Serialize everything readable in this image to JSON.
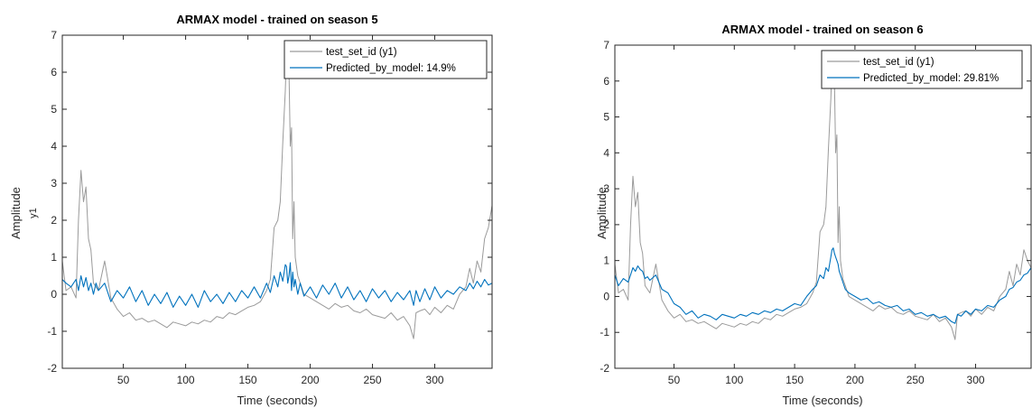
{
  "chart_data": [
    {
      "type": "line",
      "title": "ARMAX model - trained on season 5",
      "xlabel": "Time (seconds)",
      "ylabel": "Amplitude",
      "ylabel2": "y1",
      "xlim": [
        1,
        346
      ],
      "ylim": [
        -2,
        7
      ],
      "xticks": [
        50,
        100,
        150,
        200,
        250,
        300
      ],
      "yticks": [
        -2,
        -1,
        0,
        1,
        2,
        3,
        4,
        5,
        6,
        7
      ],
      "grid": false,
      "legend": "top-right",
      "series": [
        {
          "name": "test_set_id (y1)",
          "color": "#9a9a9a",
          "x": [
            1,
            4,
            8,
            12,
            14,
            16,
            18,
            20,
            22,
            24,
            26,
            28,
            30,
            35,
            40,
            45,
            50,
            55,
            60,
            65,
            70,
            75,
            80,
            85,
            90,
            95,
            100,
            105,
            110,
            115,
            120,
            125,
            130,
            135,
            140,
            145,
            150,
            155,
            160,
            165,
            168,
            171,
            174,
            176,
            178,
            180,
            181,
            182,
            183,
            184,
            185,
            186,
            187,
            188,
            190,
            192,
            195,
            200,
            205,
            210,
            215,
            220,
            225,
            230,
            235,
            240,
            245,
            250,
            255,
            260,
            265,
            270,
            275,
            280,
            283,
            285,
            288,
            292,
            296,
            300,
            305,
            310,
            315,
            320,
            325,
            328,
            331,
            334,
            337,
            340,
            343,
            346
          ],
          "y": [
            0.9,
            0.1,
            0.2,
            -0.1,
            2.0,
            3.35,
            2.5,
            2.9,
            1.5,
            1.2,
            0.3,
            0.2,
            0.1,
            0.9,
            -0.1,
            -0.4,
            -0.6,
            -0.5,
            -0.7,
            -0.65,
            -0.75,
            -0.7,
            -0.8,
            -0.9,
            -0.75,
            -0.8,
            -0.85,
            -0.75,
            -0.8,
            -0.7,
            -0.75,
            -0.6,
            -0.65,
            -0.5,
            -0.55,
            -0.45,
            -0.35,
            -0.3,
            -0.2,
            0.1,
            0.4,
            1.8,
            2.0,
            2.5,
            4.1,
            5.5,
            6.5,
            5.9,
            6.0,
            4.0,
            4.5,
            1.5,
            2.5,
            1.0,
            0.5,
            0.3,
            0.0,
            -0.1,
            -0.2,
            -0.3,
            -0.4,
            -0.25,
            -0.35,
            -0.3,
            -0.45,
            -0.5,
            -0.4,
            -0.55,
            -0.6,
            -0.65,
            -0.5,
            -0.7,
            -0.6,
            -0.85,
            -1.2,
            -0.5,
            -0.45,
            -0.4,
            -0.55,
            -0.35,
            -0.5,
            -0.3,
            -0.4,
            0.0,
            0.2,
            0.7,
            0.3,
            0.9,
            0.6,
            1.5,
            1.8,
            2.4
          ]
        },
        {
          "name": "Predicted_by_model: 14.9%",
          "color": "#0072bd",
          "x": [
            1,
            4,
            8,
            12,
            14,
            16,
            18,
            20,
            22,
            24,
            26,
            28,
            30,
            35,
            40,
            45,
            50,
            55,
            60,
            65,
            70,
            75,
            80,
            85,
            90,
            95,
            100,
            105,
            110,
            115,
            120,
            125,
            130,
            135,
            140,
            145,
            150,
            155,
            160,
            165,
            168,
            171,
            174,
            176,
            178,
            180,
            181,
            182,
            183,
            184,
            185,
            186,
            187,
            188,
            190,
            192,
            195,
            200,
            205,
            210,
            215,
            220,
            225,
            230,
            235,
            240,
            245,
            250,
            255,
            260,
            265,
            270,
            275,
            280,
            283,
            285,
            288,
            292,
            296,
            300,
            305,
            310,
            315,
            320,
            325,
            328,
            331,
            334,
            337,
            340,
            343,
            346
          ],
          "y": [
            0.4,
            0.3,
            0.2,
            0.4,
            0.1,
            0.5,
            0.2,
            0.45,
            0.1,
            0.3,
            0.0,
            0.3,
            0.1,
            0.3,
            -0.2,
            0.1,
            -0.1,
            0.2,
            -0.2,
            0.1,
            -0.3,
            0.0,
            -0.25,
            0.05,
            -0.35,
            -0.05,
            -0.3,
            0.0,
            -0.35,
            0.1,
            -0.2,
            0.0,
            -0.25,
            0.05,
            -0.2,
            0.1,
            -0.1,
            0.2,
            -0.1,
            0.3,
            0.05,
            0.5,
            0.2,
            0.6,
            0.35,
            0.8,
            0.75,
            0.3,
            0.5,
            0.85,
            0.1,
            0.6,
            0.2,
            0.4,
            0.0,
            0.3,
            -0.05,
            0.2,
            -0.1,
            0.25,
            0.0,
            0.3,
            -0.1,
            0.2,
            -0.15,
            0.1,
            -0.2,
            0.15,
            -0.1,
            0.1,
            -0.2,
            0.05,
            -0.15,
            0.1,
            -0.3,
            0.1,
            -0.2,
            0.15,
            -0.15,
            0.2,
            -0.1,
            0.1,
            0.0,
            0.2,
            0.1,
            0.3,
            0.15,
            0.35,
            0.2,
            0.4,
            0.25,
            0.3
          ]
        }
      ]
    },
    {
      "type": "line",
      "title": "ARMAX model - trained on season 6",
      "xlabel": "Time (seconds)",
      "ylabel": "Amplitude",
      "ylabel2": "y1",
      "xlim": [
        1,
        346
      ],
      "ylim": [
        -2,
        7
      ],
      "xticks": [
        50,
        100,
        150,
        200,
        250,
        300
      ],
      "yticks": [
        -2,
        -1,
        0,
        1,
        2,
        3,
        4,
        5,
        6,
        7
      ],
      "grid": false,
      "legend": "top-right",
      "series": [
        {
          "name": "test_set_id (y1)",
          "color": "#9a9a9a",
          "x": [
            1,
            4,
            8,
            12,
            14,
            16,
            18,
            20,
            22,
            24,
            26,
            28,
            30,
            35,
            40,
            45,
            50,
            55,
            60,
            65,
            70,
            75,
            80,
            85,
            90,
            95,
            100,
            105,
            110,
            115,
            120,
            125,
            130,
            135,
            140,
            145,
            150,
            155,
            160,
            165,
            168,
            171,
            174,
            176,
            178,
            180,
            181,
            182,
            183,
            184,
            185,
            186,
            187,
            188,
            190,
            192,
            195,
            200,
            205,
            210,
            215,
            220,
            225,
            230,
            235,
            240,
            245,
            250,
            255,
            260,
            265,
            270,
            275,
            280,
            283,
            285,
            288,
            292,
            296,
            300,
            305,
            310,
            315,
            320,
            325,
            328,
            331,
            334,
            337,
            340,
            343,
            346
          ],
          "y": [
            0.9,
            0.1,
            0.2,
            -0.1,
            2.0,
            3.35,
            2.5,
            2.9,
            1.5,
            1.2,
            0.3,
            0.2,
            0.1,
            0.9,
            -0.1,
            -0.4,
            -0.6,
            -0.5,
            -0.7,
            -0.65,
            -0.75,
            -0.7,
            -0.8,
            -0.9,
            -0.75,
            -0.8,
            -0.85,
            -0.75,
            -0.8,
            -0.7,
            -0.75,
            -0.6,
            -0.65,
            -0.5,
            -0.55,
            -0.45,
            -0.35,
            -0.3,
            -0.2,
            0.1,
            0.4,
            1.8,
            2.0,
            2.5,
            4.1,
            5.5,
            6.5,
            5.9,
            6.0,
            4.0,
            4.5,
            1.5,
            2.5,
            1.0,
            0.5,
            0.3,
            0.0,
            -0.1,
            -0.2,
            -0.3,
            -0.4,
            -0.25,
            -0.35,
            -0.3,
            -0.45,
            -0.5,
            -0.4,
            -0.55,
            -0.6,
            -0.65,
            -0.5,
            -0.7,
            -0.6,
            -0.85,
            -1.2,
            -0.5,
            -0.45,
            -0.4,
            -0.55,
            -0.35,
            -0.5,
            -0.3,
            -0.4,
            0.0,
            0.2,
            0.7,
            0.3,
            0.9,
            0.6,
            1.3,
            1.0,
            0.8
          ]
        },
        {
          "name": "Predicted_by_model: 29.81%",
          "color": "#0072bd",
          "x": [
            1,
            4,
            8,
            12,
            14,
            16,
            18,
            20,
            22,
            24,
            26,
            28,
            30,
            35,
            40,
            45,
            50,
            55,
            60,
            65,
            70,
            75,
            80,
            85,
            90,
            95,
            100,
            105,
            110,
            115,
            120,
            125,
            130,
            135,
            140,
            145,
            150,
            155,
            160,
            165,
            168,
            171,
            174,
            176,
            178,
            180,
            181,
            182,
            183,
            184,
            185,
            186,
            187,
            188,
            190,
            192,
            195,
            200,
            205,
            210,
            215,
            220,
            225,
            230,
            235,
            240,
            245,
            250,
            255,
            260,
            265,
            270,
            275,
            280,
            283,
            285,
            288,
            292,
            296,
            300,
            305,
            310,
            315,
            320,
            325,
            328,
            331,
            334,
            337,
            340,
            343,
            346
          ],
          "y": [
            0.6,
            0.3,
            0.5,
            0.4,
            0.6,
            0.8,
            0.7,
            0.85,
            0.75,
            0.7,
            0.5,
            0.55,
            0.45,
            0.6,
            0.2,
            0.1,
            -0.2,
            -0.3,
            -0.5,
            -0.4,
            -0.6,
            -0.5,
            -0.55,
            -0.65,
            -0.5,
            -0.55,
            -0.6,
            -0.5,
            -0.55,
            -0.45,
            -0.5,
            -0.4,
            -0.45,
            -0.35,
            -0.4,
            -0.3,
            -0.2,
            -0.25,
            0.0,
            0.2,
            0.3,
            0.6,
            0.5,
            0.8,
            0.7,
            1.1,
            1.3,
            1.35,
            1.2,
            1.1,
            1.0,
            0.9,
            0.7,
            0.6,
            0.4,
            0.2,
            0.1,
            0.0,
            -0.1,
            -0.05,
            -0.2,
            -0.15,
            -0.25,
            -0.3,
            -0.25,
            -0.4,
            -0.35,
            -0.5,
            -0.45,
            -0.55,
            -0.5,
            -0.6,
            -0.55,
            -0.7,
            -0.75,
            -0.5,
            -0.55,
            -0.4,
            -0.5,
            -0.35,
            -0.4,
            -0.25,
            -0.3,
            -0.1,
            0.0,
            0.2,
            0.25,
            0.4,
            0.45,
            0.6,
            0.65,
            0.8
          ]
        }
      ]
    }
  ]
}
